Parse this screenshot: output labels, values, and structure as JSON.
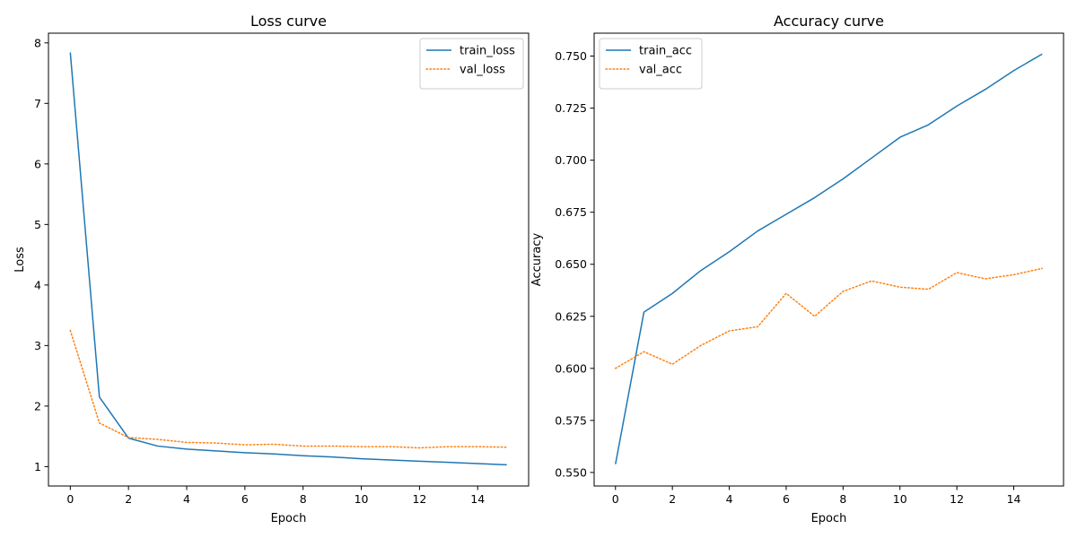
{
  "chart_data": [
    {
      "type": "line",
      "title": "Loss curve",
      "xlabel": "Epoch",
      "ylabel": "Loss",
      "xlim": [
        -0.75,
        15.75
      ],
      "ylim": [
        0.68,
        8.16
      ],
      "xticks": [
        0,
        2,
        4,
        6,
        8,
        10,
        12,
        14
      ],
      "yticks": [
        1,
        2,
        3,
        4,
        5,
        6,
        7,
        8
      ],
      "ytick_labels": [
        "1",
        "2",
        "3",
        "4",
        "5",
        "6",
        "7",
        "8"
      ],
      "grid": false,
      "legend_position": "top-right",
      "x": [
        0,
        1,
        2,
        3,
        4,
        5,
        6,
        7,
        8,
        9,
        10,
        11,
        12,
        13,
        14,
        15
      ],
      "series": [
        {
          "name": "train_loss",
          "color": "#1f77b4",
          "style": "solid",
          "values": [
            7.84,
            2.15,
            1.47,
            1.34,
            1.29,
            1.26,
            1.23,
            1.21,
            1.18,
            1.16,
            1.13,
            1.11,
            1.09,
            1.07,
            1.05,
            1.03
          ]
        },
        {
          "name": "val_loss",
          "color": "#ff7f0e",
          "style": "dotted",
          "values": [
            3.25,
            1.72,
            1.48,
            1.45,
            1.4,
            1.39,
            1.36,
            1.37,
            1.34,
            1.34,
            1.33,
            1.33,
            1.31,
            1.33,
            1.33,
            1.32
          ]
        }
      ]
    },
    {
      "type": "line",
      "title": "Accuracy curve",
      "xlabel": "Epoch",
      "ylabel": "Accuracy",
      "xlim": [
        -0.75,
        15.75
      ],
      "ylim": [
        0.5435,
        0.761
      ],
      "xticks": [
        0,
        2,
        4,
        6,
        8,
        10,
        12,
        14
      ],
      "yticks": [
        0.55,
        0.575,
        0.6,
        0.625,
        0.65,
        0.675,
        0.7,
        0.725,
        0.75
      ],
      "ytick_labels": [
        "0.550",
        "0.575",
        "0.600",
        "0.625",
        "0.650",
        "0.675",
        "0.700",
        "0.725",
        "0.750"
      ],
      "grid": false,
      "legend_position": "top-left",
      "x": [
        0,
        1,
        2,
        3,
        4,
        5,
        6,
        7,
        8,
        9,
        10,
        11,
        12,
        13,
        14,
        15
      ],
      "series": [
        {
          "name": "train_acc",
          "color": "#1f77b4",
          "style": "solid",
          "values": [
            0.554,
            0.627,
            0.636,
            0.647,
            0.656,
            0.666,
            0.674,
            0.682,
            0.691,
            0.701,
            0.711,
            0.717,
            0.726,
            0.734,
            0.743,
            0.751
          ]
        },
        {
          "name": "val_acc",
          "color": "#ff7f0e",
          "style": "dotted",
          "values": [
            0.6,
            0.608,
            0.602,
            0.611,
            0.618,
            0.62,
            0.636,
            0.625,
            0.637,
            0.642,
            0.639,
            0.638,
            0.646,
            0.643,
            0.645,
            0.648
          ]
        }
      ]
    }
  ]
}
